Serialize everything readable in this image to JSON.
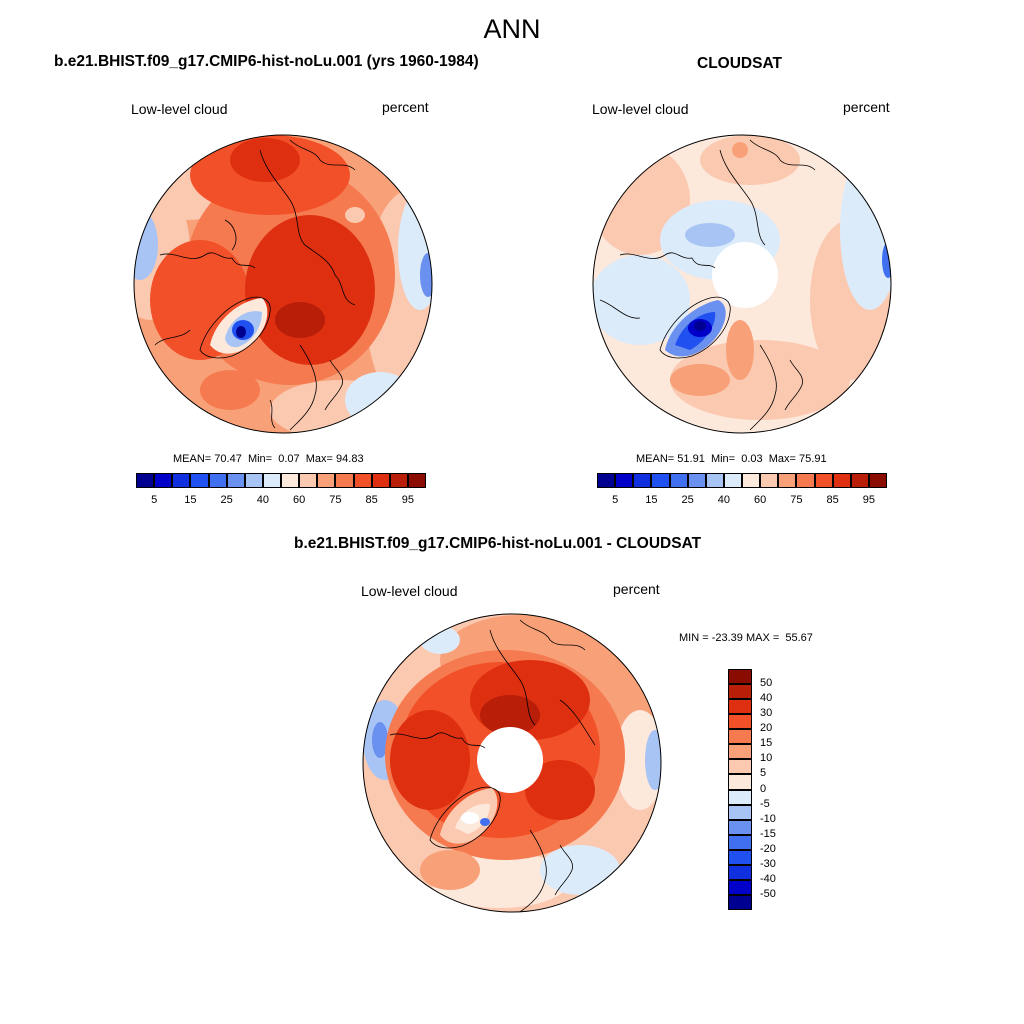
{
  "figure": {
    "title": "ANN"
  },
  "panels": [
    {
      "id": "model",
      "title": "b.e21.BHIST.f09_g17.CMIP6-hist-noLu.001 (yrs 1960-1984)",
      "left_label": "Low-level cloud",
      "right_label": "percent",
      "stats": {
        "mean_label": "MEAN=",
        "mean": "70.47",
        "min_label": "Min=",
        "min": "0.07",
        "max_label": "Max=",
        "max": "94.83"
      }
    },
    {
      "id": "obs",
      "title": "CLOUDSAT",
      "left_label": "Low-level cloud",
      "right_label": "percent",
      "stats": {
        "mean_label": "MEAN=",
        "mean": "51.91",
        "min_label": "Min=",
        "min": "0.03",
        "max_label": "Max=",
        "max": "75.91"
      }
    },
    {
      "id": "diff",
      "title": "b.e21.BHIST.f09_g17.CMIP6-hist-noLu.001 - CLOUDSAT",
      "left_label": "Low-level cloud",
      "right_label": "percent",
      "stats_text": "MIN = -23.39 MAX =  55.67"
    }
  ],
  "abs_colorbar": {
    "orientation": "horizontal",
    "tick_labels": [
      "5",
      "15",
      "25",
      "40",
      "60",
      "75",
      "85",
      "95"
    ],
    "colors": [
      "#000090",
      "#0000c8",
      "#1030e0",
      "#2050f0",
      "#4070f0",
      "#6a90f0",
      "#a8c4f4",
      "#dcebfa",
      "#fde8dc",
      "#fbc8b0",
      "#f8a078",
      "#f57a50",
      "#f25028",
      "#de3010",
      "#b81e08",
      "#8a0c00"
    ]
  },
  "diff_colorbar": {
    "orientation": "vertical",
    "tick_labels": [
      "50",
      "40",
      "30",
      "20",
      "15",
      "10",
      "5",
      "0",
      "-5",
      "-10",
      "-15",
      "-20",
      "-30",
      "-40",
      "-50"
    ],
    "colors": [
      "#8a0c00",
      "#b81e08",
      "#de3010",
      "#f25028",
      "#f57a50",
      "#f8a078",
      "#fbc8b0",
      "#fde8dc",
      "#dcebfa",
      "#a8c4f4",
      "#6a90f0",
      "#4070f0",
      "#2050f0",
      "#1030e0",
      "#0000c8",
      "#000090"
    ]
  }
}
